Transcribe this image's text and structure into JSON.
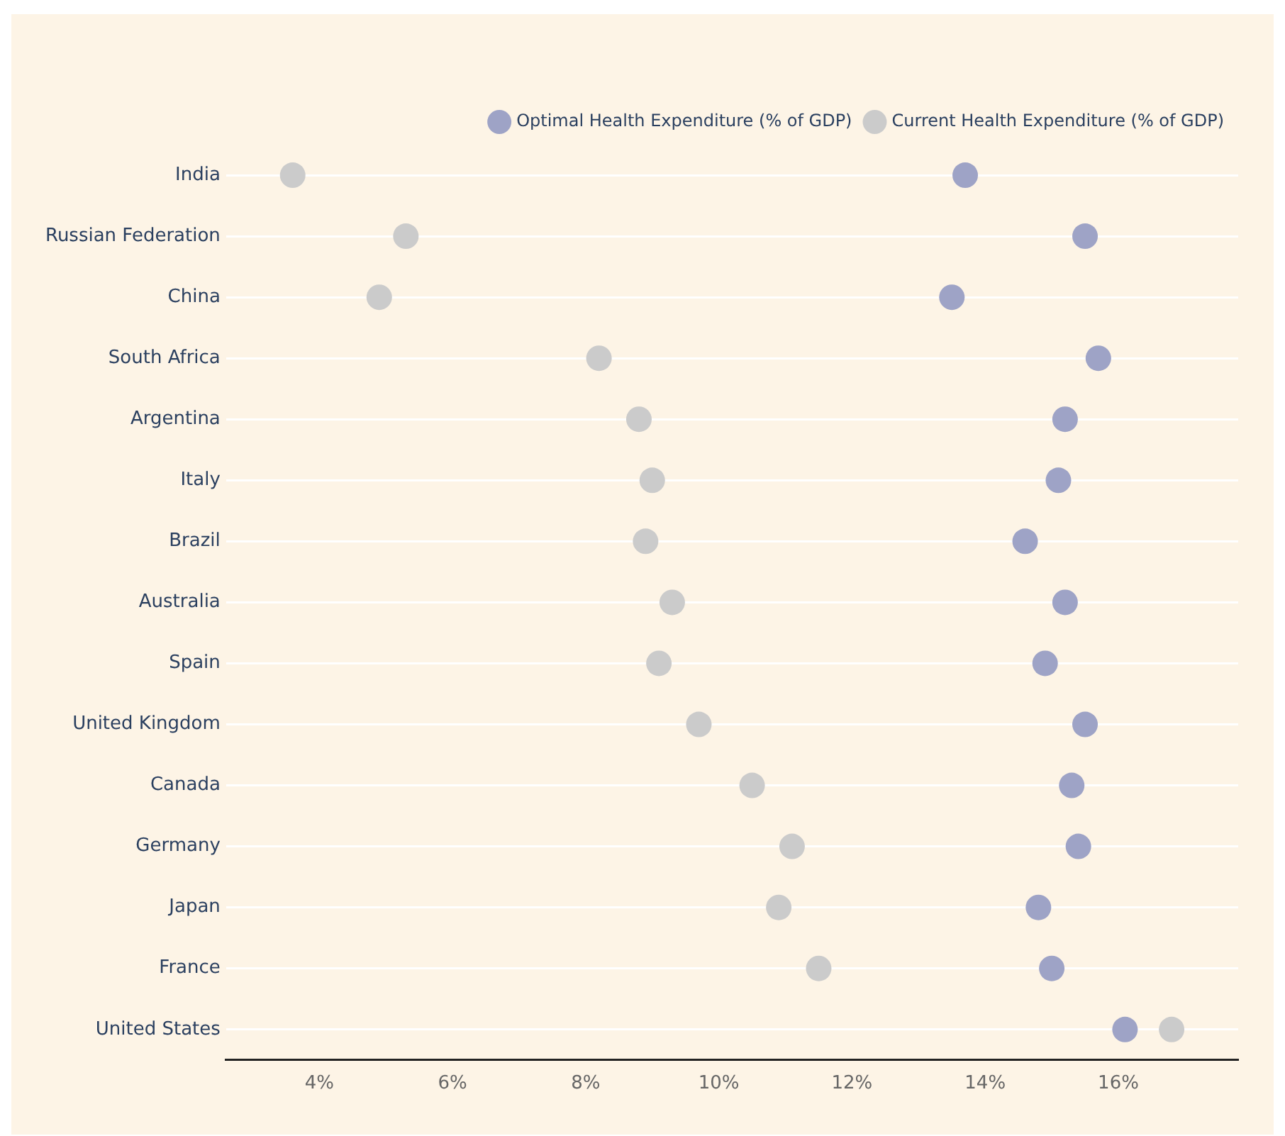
{
  "chart_data": {
    "type": "scatter",
    "categories": [
      "India",
      "Russian Federation",
      "China",
      "South Africa",
      "Argentina",
      "Italy",
      "Brazil",
      "Australia",
      "Spain",
      "United Kingdom",
      "Canada",
      "Germany",
      "Japan",
      "France",
      "United States"
    ],
    "orientation": "horizontal",
    "series": [
      {
        "name": "Optimal Health Expenditure (% of GDP)",
        "color": "#9ea3c6",
        "values": [
          13.7,
          15.5,
          13.5,
          15.7,
          15.2,
          15.1,
          14.6,
          15.2,
          14.9,
          15.5,
          15.3,
          15.4,
          14.8,
          15.0,
          16.1
        ]
      },
      {
        "name": "Current Health Expenditure (% of GDP)",
        "color": "#cbcbcb",
        "values": [
          3.6,
          5.3,
          4.9,
          8.2,
          8.8,
          9.0,
          8.9,
          9.3,
          9.1,
          9.7,
          10.5,
          11.1,
          10.9,
          11.5,
          16.8
        ]
      }
    ],
    "xlim": [
      2.6,
      17.8
    ],
    "xticks": [
      {
        "value": 4,
        "label": "4%"
      },
      {
        "value": 6,
        "label": "6%"
      },
      {
        "value": 8,
        "label": "8%"
      },
      {
        "value": 10,
        "label": "10%"
      },
      {
        "value": 12,
        "label": "12%"
      },
      {
        "value": 14,
        "label": "14%"
      },
      {
        "value": 16,
        "label": "16%"
      }
    ],
    "grid": "y",
    "legend": "top right",
    "marker": "circle"
  }
}
